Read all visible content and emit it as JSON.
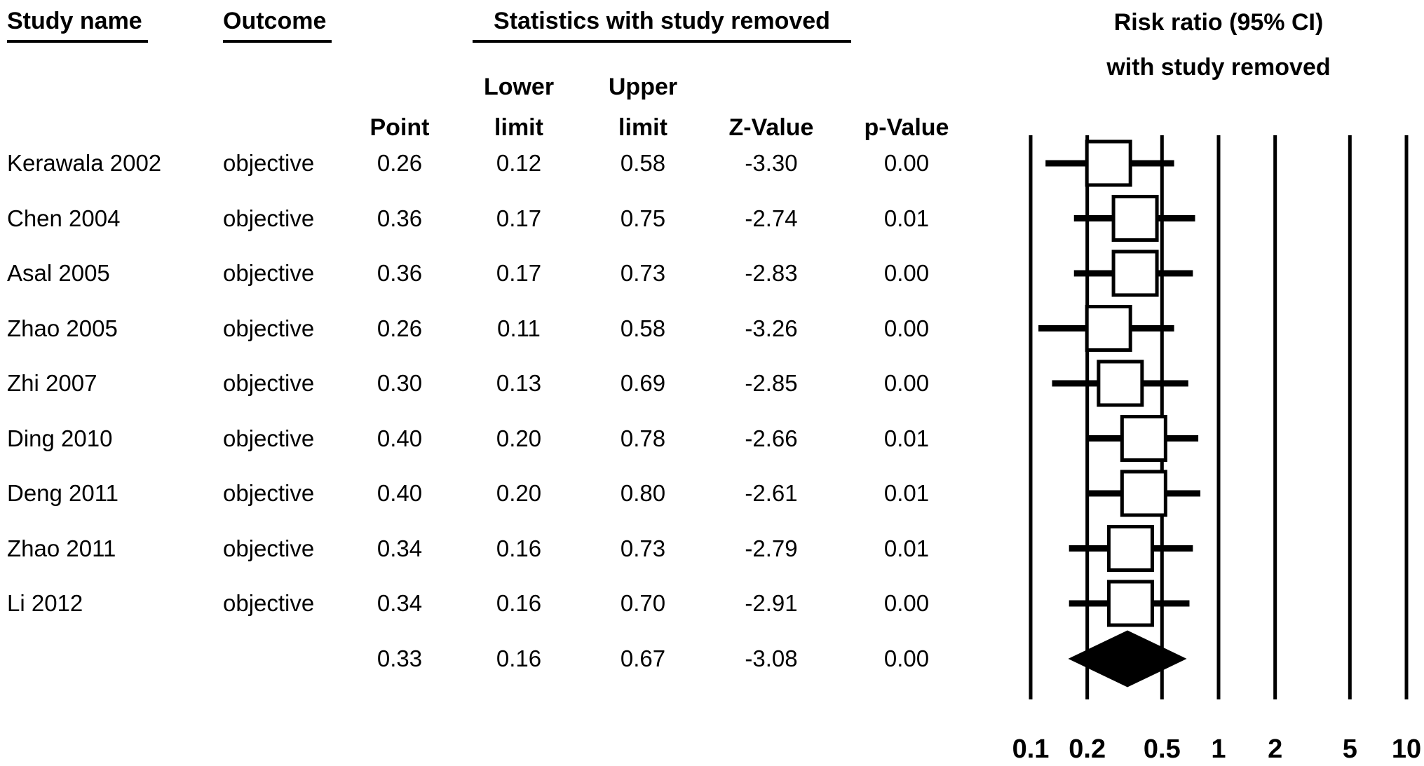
{
  "headers": {
    "study_name": "Study name",
    "outcome": "Outcome",
    "stats_group": "Statistics with study removed",
    "col_point": "Point",
    "col_lower_top": "Lower",
    "col_lower_bottom": "limit",
    "col_upper_top": "Upper",
    "col_upper_bottom": "limit",
    "col_z": "Z-Value",
    "col_p": "p-Value",
    "plot_title_line1": "Risk ratio (95% CI)",
    "plot_title_line2": "with study removed"
  },
  "colors": {
    "ink": "#000000",
    "paper": "#ffffff"
  },
  "chart_data": {
    "type": "forest",
    "title": "Risk ratio (95% CI) with study removed",
    "x_scale": "log",
    "xlim": [
      0.1,
      10
    ],
    "x_ticks": [
      "0.1",
      "0.2",
      "0.5",
      "1",
      "2",
      "5",
      "10"
    ],
    "marker": "open-square",
    "pooled_marker": "filled-diamond",
    "columns": [
      "Study name",
      "Outcome",
      "Point",
      "Lower limit",
      "Upper limit",
      "Z-Value",
      "p-Value"
    ],
    "rows": [
      {
        "study": "Kerawala 2002",
        "outcome": "objective",
        "point": "0.26",
        "lower": "0.12",
        "upper": "0.58",
        "z": "-3.30",
        "p": "0.00"
      },
      {
        "study": "Chen 2004",
        "outcome": "objective",
        "point": "0.36",
        "lower": "0.17",
        "upper": "0.75",
        "z": "-2.74",
        "p": "0.01"
      },
      {
        "study": "Asal 2005",
        "outcome": "objective",
        "point": "0.36",
        "lower": "0.17",
        "upper": "0.73",
        "z": "-2.83",
        "p": "0.00"
      },
      {
        "study": "Zhao 2005",
        "outcome": "objective",
        "point": "0.26",
        "lower": "0.11",
        "upper": "0.58",
        "z": "-3.26",
        "p": "0.00"
      },
      {
        "study": "Zhi 2007",
        "outcome": "objective",
        "point": "0.30",
        "lower": "0.13",
        "upper": "0.69",
        "z": "-2.85",
        "p": "0.00"
      },
      {
        "study": "Ding 2010",
        "outcome": "objective",
        "point": "0.40",
        "lower": "0.20",
        "upper": "0.78",
        "z": "-2.66",
        "p": "0.01"
      },
      {
        "study": "Deng 2011",
        "outcome": "objective",
        "point": "0.40",
        "lower": "0.20",
        "upper": "0.80",
        "z": "-2.61",
        "p": "0.01"
      },
      {
        "study": "Zhao 2011",
        "outcome": "objective",
        "point": "0.34",
        "lower": "0.16",
        "upper": "0.73",
        "z": "-2.79",
        "p": "0.01"
      },
      {
        "study": "Li 2012",
        "outcome": "objective",
        "point": "0.34",
        "lower": "0.16",
        "upper": "0.70",
        "z": "-2.91",
        "p": "0.00"
      }
    ],
    "pooled": {
      "study": "",
      "outcome": "",
      "point": "0.33",
      "lower": "0.16",
      "upper": "0.67",
      "z": "-3.08",
      "p": "0.00"
    }
  }
}
